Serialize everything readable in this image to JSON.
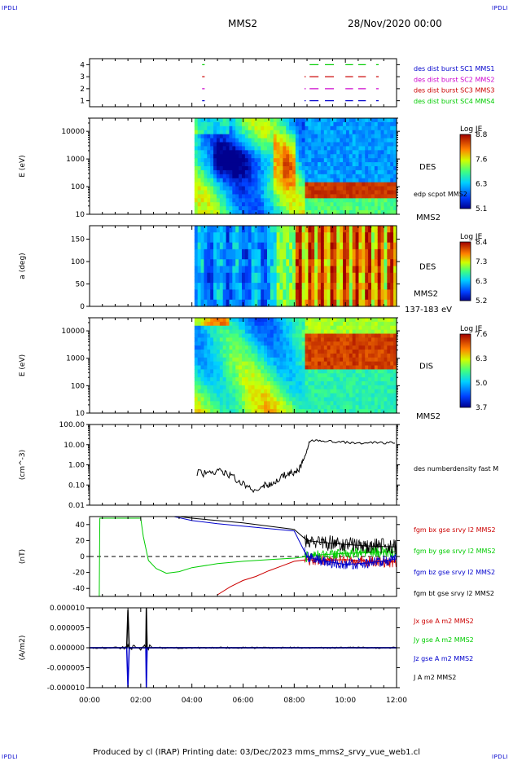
{
  "header": {
    "corner_label": "IPDLI",
    "title": "MMS2",
    "date": "28/Nov/2020 00:00"
  },
  "footer": {
    "text": "Produced by cl (IRAP)   Printing date: 03/Dec/2023   mms_mms2_srvy_vue_web1.cl"
  },
  "x_axis": {
    "ticks": [
      "00:00",
      "02:00",
      "04:00",
      "06:00",
      "08:00",
      "10:00",
      "12:00"
    ],
    "range_hours": [
      0,
      12
    ]
  },
  "colors": {
    "ion_bg": "#2b1b8e",
    "frame": "#000000",
    "mms1": "#00cc00",
    "mms2": "#cc00cc",
    "mms3": "#cc0000",
    "mms4": "#0000cc"
  },
  "chart_data": [
    {
      "type": "scatter",
      "panel": "burst-availability",
      "y_ticks": [
        "1",
        "2",
        "3",
        "4"
      ],
      "ylim": [
        0.5,
        4.5
      ],
      "legend": [
        {
          "label": "des dist burst SC1 MMS1",
          "color": "#0000cc"
        },
        {
          "label": "des dist burst SC2 MMS2",
          "color": "#cc00cc"
        },
        {
          "label": "des dist burst SC3 MMS3",
          "color": "#cc0000"
        },
        {
          "label": "des dist burst SC4 MMS4",
          "color": "#00cc00"
        }
      ],
      "segments": [
        {
          "start": 4.4,
          "end": 4.5
        },
        {
          "start": 8.4,
          "end": 8.45
        },
        {
          "start": 8.6,
          "end": 8.95
        },
        {
          "start": 9.2,
          "end": 9.55
        },
        {
          "start": 10.0,
          "end": 10.3
        },
        {
          "start": 10.5,
          "end": 10.8
        },
        {
          "start": 11.2,
          "end": 11.3
        }
      ],
      "rows": [
        {
          "level": 4,
          "color": "#00cc00",
          "segments": [
            0,
            2,
            3,
            4,
            5,
            6
          ]
        },
        {
          "level": 3,
          "color": "#cc0000",
          "segments": [
            0,
            1,
            2,
            3,
            4,
            5,
            6
          ]
        },
        {
          "level": 2,
          "color": "#cc00cc",
          "segments": [
            0,
            1,
            2,
            3,
            4,
            5,
            6
          ]
        },
        {
          "level": 1,
          "color": "#0000cc",
          "segments": [
            0,
            1,
            2,
            3,
            4,
            5,
            6
          ]
        }
      ]
    },
    {
      "type": "heatmap",
      "panel": "des-energy",
      "ylabel": "E (eV)",
      "y_log": true,
      "ylim": [
        10,
        30000
      ],
      "y_ticks": [
        "10",
        "100",
        "1000",
        "10000"
      ],
      "label": "DES",
      "sub_label": "edp scpot MMS2",
      "bottom_label": "MMS2",
      "colorbar": {
        "title": "Log JE",
        "ticks": [
          "8.8",
          "7.6",
          "6.3",
          "5.1"
        ],
        "min": 5.1,
        "max": 8.8
      },
      "data_start_hour": 4.1
    },
    {
      "type": "heatmap",
      "panel": "des-pitch",
      "ylabel": "a (deg)",
      "ylim": [
        0,
        180
      ],
      "y_ticks": [
        "0",
        "50",
        "100",
        "150"
      ],
      "label": "DES",
      "sub_label": "MMS2",
      "bottom_label": "137-183 eV",
      "colorbar": {
        "title": "Log JE",
        "ticks": [
          "8.4",
          "7.3",
          "6.3",
          "5.2"
        ],
        "min": 5.2,
        "max": 8.4
      },
      "data_start_hour": 4.1
    },
    {
      "type": "heatmap",
      "panel": "dis-energy",
      "ylabel": "E (eV)",
      "y_log": true,
      "ylim": [
        10,
        30000
      ],
      "y_ticks": [
        "10",
        "100",
        "1000",
        "10000"
      ],
      "label": "DIS",
      "bottom_label": "MMS2",
      "colorbar": {
        "title": "Log JE",
        "ticks": [
          "7.6",
          "6.3",
          "5.0",
          "3.7"
        ],
        "min": 3.7,
        "max": 7.6
      },
      "data_start_hour": 4.1
    },
    {
      "type": "line",
      "panel": "density",
      "ylabel": "(cm^-3)",
      "y_log": true,
      "ylim": [
        0.01,
        100
      ],
      "y_ticks": [
        "0.01",
        "0.10",
        "1.00",
        "10.00",
        "100.00"
      ],
      "series": [
        {
          "name": "des numberdensity fast M",
          "color": "#000000",
          "x": [
            4.2,
            4.6,
            5.0,
            5.3,
            5.6,
            6.0,
            6.4,
            6.8,
            7.0,
            7.2,
            7.5,
            7.8,
            8.0,
            8.15,
            8.3,
            8.45,
            8.6,
            9.0,
            9.5,
            10.0,
            10.5,
            11.0,
            11.5,
            12.0
          ],
          "y": [
            0.42,
            0.35,
            0.5,
            0.4,
            0.25,
            0.12,
            0.06,
            0.1,
            0.09,
            0.12,
            0.3,
            0.35,
            0.42,
            0.45,
            1.3,
            3.0,
            15,
            16,
            14,
            13,
            12,
            13,
            12,
            13
          ]
        }
      ]
    },
    {
      "type": "line",
      "panel": "magnetic-field",
      "ylabel": "(nT)",
      "ylim": [
        -50,
        50
      ],
      "y_ticks": [
        "-40",
        "-20",
        "0",
        "20",
        "40"
      ],
      "series": [
        {
          "name": "fgm bx gse srvy l2 MMS2",
          "color": "#cc0000",
          "x": [
            5.0,
            5.5,
            6.0,
            6.5,
            7.0,
            7.5,
            8.0,
            8.5,
            9.0,
            10.0,
            11.0,
            12.0
          ],
          "y": [
            -48,
            -38,
            -30,
            -25,
            -18,
            -12,
            -6,
            -4,
            -5,
            -4,
            -6,
            -7
          ]
        },
        {
          "name": "fgm by gse srvy l2 MMS2",
          "color": "#00cc00",
          "x": [
            0.38,
            0.4,
            2.0,
            2.1,
            2.3,
            2.6,
            3.0,
            3.5,
            4.0,
            5.0,
            6.0,
            7.0,
            8.0,
            9.0,
            10.0,
            11.0,
            12.0
          ],
          "y": [
            -50,
            48,
            48,
            25,
            -5,
            -15,
            -21,
            -19,
            -14,
            -9,
            -6,
            -4,
            -2,
            2,
            4,
            5,
            6
          ]
        },
        {
          "name": "fgm bz gse srvy l2 MMS2",
          "color": "#0000cc",
          "x": [
            3.3,
            4.0,
            5.0,
            6.0,
            7.0,
            8.0,
            8.5,
            9.0,
            10.0,
            11.0,
            12.0
          ],
          "y": [
            50,
            45,
            41,
            38,
            35,
            32,
            0,
            -5,
            -10,
            -8,
            -3
          ]
        },
        {
          "name": "fgm bt gse srvy l2 MMS2",
          "color": "#000000",
          "x": [
            3.5,
            4.0,
            5.0,
            6.0,
            7.0,
            8.0,
            8.5,
            9.0,
            10.0,
            11.0,
            12.0
          ],
          "y": [
            50,
            48,
            45,
            42,
            38,
            34,
            20,
            18,
            15,
            13,
            12
          ]
        }
      ]
    },
    {
      "type": "line",
      "panel": "current-density",
      "ylabel": "(A/m2)",
      "ylim": [
        -1e-05,
        1e-05
      ],
      "y_ticks": [
        "0.000010",
        "0.000005",
        "0.000000",
        "-0.000005",
        "-0.000010"
      ],
      "series": [
        {
          "name": "Jx gse A m2 MMS2",
          "color": "#cc0000",
          "x": [
            0,
            12
          ],
          "y": [
            0,
            0
          ]
        },
        {
          "name": "Jy gse A m2 MMS2",
          "color": "#00cc00",
          "x": [
            0,
            12
          ],
          "y": [
            0,
            0
          ]
        },
        {
          "name": "Jz gse A m2 MMS2",
          "color": "#0000cc",
          "x": [
            0,
            1.45,
            1.5,
            1.55,
            2.2,
            2.22,
            2.25,
            12
          ],
          "y": [
            0,
            0,
            -1e-05,
            0,
            0,
            -1e-05,
            0,
            0
          ]
        },
        {
          "name": "J A m2 MMS2",
          "color": "#000000",
          "x": [
            0,
            1.45,
            1.5,
            1.55,
            2.2,
            2.22,
            2.25,
            12
          ],
          "y": [
            0,
            0,
            9.5e-06,
            0,
            0,
            1e-05,
            0,
            0
          ]
        }
      ]
    }
  ]
}
